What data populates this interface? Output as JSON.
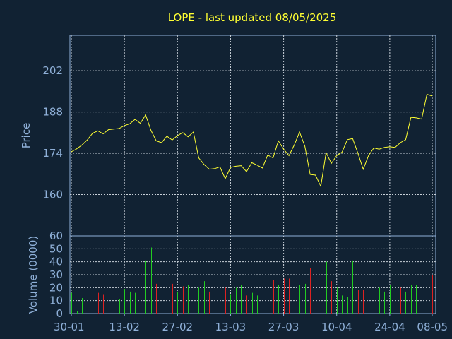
{
  "chart_data": [
    {
      "type": "line",
      "title": "LOPE - last updated 08/05/2025",
      "ylabel": "Price",
      "ylim": [
        146,
        214
      ],
      "yticks": [
        160,
        174,
        188,
        202
      ],
      "grid": true,
      "line_color": "#ffff33",
      "x": [
        "2025-01-30",
        "2025-01-31",
        "2025-02-03",
        "2025-02-04",
        "2025-02-05",
        "2025-02-06",
        "2025-02-07",
        "2025-02-10",
        "2025-02-11",
        "2025-02-12",
        "2025-02-13",
        "2025-02-14",
        "2025-02-18",
        "2025-02-19",
        "2025-02-20",
        "2025-02-21",
        "2025-02-24",
        "2025-02-25",
        "2025-02-26",
        "2025-02-27",
        "2025-02-28",
        "2025-03-03",
        "2025-03-04",
        "2025-03-05",
        "2025-03-06",
        "2025-03-07",
        "2025-03-10",
        "2025-03-11",
        "2025-03-12",
        "2025-03-13",
        "2025-03-14",
        "2025-03-17",
        "2025-03-18",
        "2025-03-19",
        "2025-03-20",
        "2025-03-21",
        "2025-03-24",
        "2025-03-25",
        "2025-03-26",
        "2025-03-27",
        "2025-03-28",
        "2025-03-31",
        "2025-04-01",
        "2025-04-02",
        "2025-04-03",
        "2025-04-04",
        "2025-04-07",
        "2025-04-08",
        "2025-04-09",
        "2025-04-10",
        "2025-04-11",
        "2025-04-14",
        "2025-04-15",
        "2025-04-16",
        "2025-04-17",
        "2025-04-21",
        "2025-04-22",
        "2025-04-23",
        "2025-04-24",
        "2025-04-25",
        "2025-04-28",
        "2025-04-29",
        "2025-04-30",
        "2025-05-01",
        "2025-05-02",
        "2025-05-05",
        "2025-05-06",
        "2025-05-07",
        "2025-05-08"
      ],
      "series": [
        {
          "values": [
            174.5,
            175.5,
            176.8,
            178.5,
            180.8,
            181.6,
            180.6,
            182.0,
            182.2,
            182.4,
            183.4,
            184.0,
            185.5,
            184.2,
            187.0,
            181.8,
            178.2,
            177.6,
            179.8,
            178.5,
            180.0,
            181.0,
            179.6,
            181.2,
            172.4,
            170.2,
            168.6,
            168.8,
            169.4,
            165.4,
            169.2,
            169.6,
            169.8,
            167.8,
            170.8,
            170.0,
            169.0,
            173.4,
            172.4,
            178.2,
            175.4,
            173.2,
            176.8,
            181.2,
            176.4,
            166.8,
            166.6,
            162.8,
            174.2,
            170.6,
            173.2,
            174.4,
            178.6,
            179.0,
            174.0,
            168.6,
            173.2,
            175.8,
            175.4,
            176.0,
            176.2,
            176.0,
            177.6,
            178.6,
            186.2,
            186.0,
            185.6,
            194.0,
            193.4
          ]
        }
      ]
    },
    {
      "type": "bar",
      "ylabel": "Volume (0000)",
      "ylim": [
        0,
        60
      ],
      "yticks": [
        0,
        10,
        20,
        30,
        40,
        50,
        60
      ],
      "grid": true,
      "colors": {
        "up": "#22cc22",
        "down": "#dd2222"
      },
      "xticks": [
        "30-01",
        "13-02",
        "27-02",
        "13-03",
        "27-03",
        "10-04",
        "24-04",
        "08-05"
      ],
      "values": [
        16,
        2,
        12,
        16,
        16,
        16,
        15,
        13,
        12,
        11,
        19,
        17,
        16,
        17,
        41,
        51,
        23,
        12,
        24,
        23,
        17,
        21,
        22,
        28,
        20,
        25,
        17,
        20,
        18,
        20,
        15,
        20,
        22,
        14,
        16,
        14,
        55,
        19,
        26,
        22,
        27,
        27,
        30,
        22,
        23,
        35,
        26,
        45,
        40,
        25,
        20,
        14,
        13,
        41,
        18,
        18,
        20,
        21,
        20,
        17,
        22,
        22,
        20,
        17,
        22,
        22,
        26,
        60,
        30
      ],
      "direction": [
        "u",
        "u",
        "u",
        "u",
        "u",
        "d",
        "d",
        "u",
        "u",
        "u",
        "u",
        "u",
        "u",
        "u",
        "u",
        "u",
        "d",
        "u",
        "d",
        "d",
        "u",
        "d",
        "u",
        "u",
        "u",
        "u",
        "d",
        "u",
        "d",
        "d",
        "u",
        "u",
        "u",
        "d",
        "u",
        "u",
        "d",
        "u",
        "d",
        "u",
        "d",
        "d",
        "u",
        "u",
        "u",
        "d",
        "u",
        "d",
        "u",
        "d",
        "u",
        "u",
        "u",
        "u",
        "d",
        "d",
        "u",
        "u",
        "u",
        "u",
        "u",
        "u",
        "d",
        "u",
        "u",
        "u",
        "u",
        "d",
        "d"
      ]
    }
  ]
}
